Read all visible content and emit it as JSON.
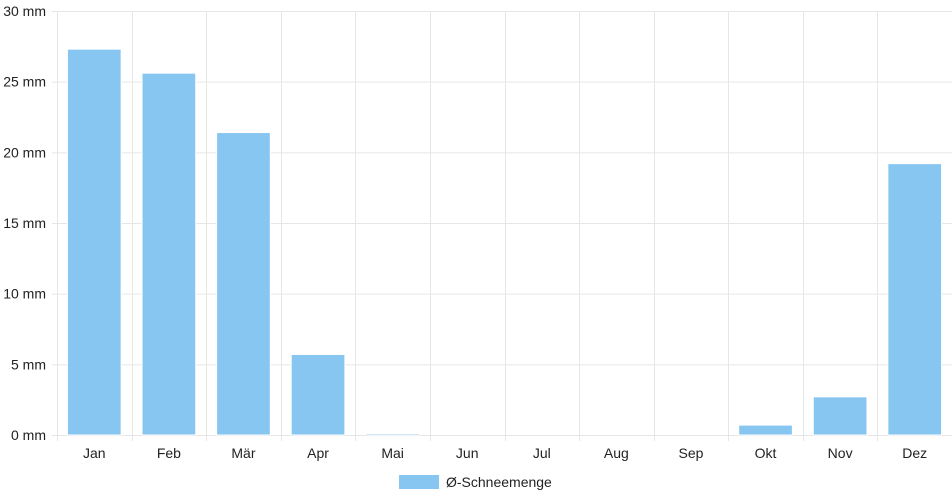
{
  "chart_data": {
    "type": "bar",
    "categories": [
      "Jan",
      "Feb",
      "Mär",
      "Apr",
      "Mai",
      "Jun",
      "Jul",
      "Aug",
      "Sep",
      "Okt",
      "Nov",
      "Dez"
    ],
    "series": [
      {
        "name": "Ø-Schneemenge",
        "values": [
          27.3,
          25.6,
          21.4,
          5.7,
          0.1,
          0,
          0,
          0,
          0,
          0.7,
          2.7,
          19.2
        ],
        "color": "#88c6f2"
      }
    ],
    "ylim": [
      0,
      30
    ],
    "yticks": [
      0,
      5,
      10,
      15,
      20,
      25,
      30
    ],
    "ytick_unit": "mm",
    "grid": true,
    "legend_position": "bottom"
  }
}
